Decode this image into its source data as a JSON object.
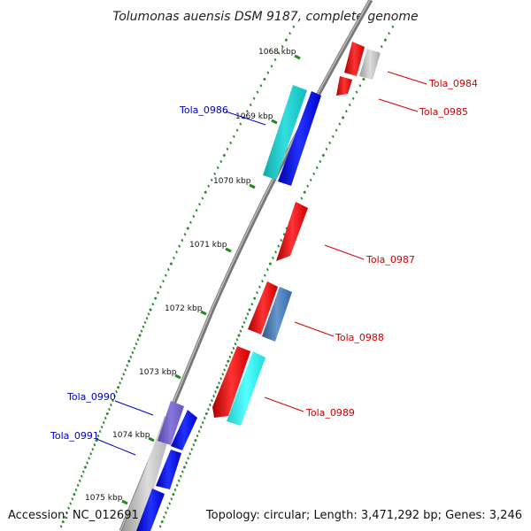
{
  "title": "Tolumonas auensis DSM 9187, complete genome",
  "footer": {
    "accession": "Accession: NC_012691",
    "topology": "Topology: circular; Length: 3,471,292 bp; Genes: 3,246"
  },
  "scale_labels": [
    "1068 kbp",
    "1069 kbp",
    "1070 kbp",
    "1071 kbp",
    "1072 kbp",
    "1073 kbp",
    "1074 kbp",
    "1075 kbp"
  ],
  "gene_labels": {
    "Tola_0984": "Tola_0984",
    "Tola_0985": "Tola_0985",
    "Tola_0986": "Tola_0986",
    "Tola_0987": "Tola_0987",
    "Tola_0988": "Tola_0988",
    "Tola_0989": "Tola_0989",
    "Tola_0990": "Tola_0990",
    "Tola_0991": "Tola_0991"
  },
  "colors": {
    "red": "#ee1111",
    "blue": "#1111dd",
    "cyan": "#11cccc",
    "steel": "#4477aa",
    "purple": "#7766cc",
    "gray": "#bbbbbb",
    "tick_green": "#228822",
    "label_red": "#d40000",
    "label_blue": "#0000c8"
  }
}
